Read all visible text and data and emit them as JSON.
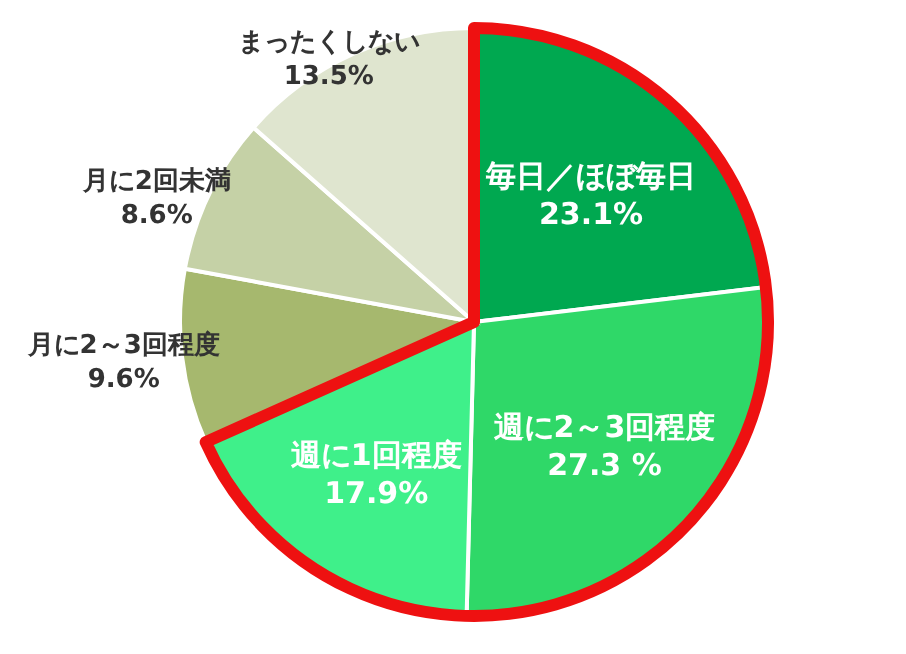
{
  "chart_data": {
    "type": "pie",
    "categories": [
      "毎日／ほぼ毎日",
      "週に2～3回程度",
      "週に1回程度",
      "月に2～3回程度",
      "月に2回未満",
      "まったくしない"
    ],
    "values": [
      23.1,
      27.3,
      17.9,
      9.6,
      8.6,
      13.5
    ],
    "value_labels": [
      "23.1%",
      "27.3 %",
      "17.9%",
      "9.6%",
      "8.6%",
      "13.5%"
    ],
    "colors": [
      "#00a850",
      "#2fd868",
      "#3ff08a",
      "#a6b86e",
      "#c5d1a6",
      "#dfe5cf"
    ]
  }
}
